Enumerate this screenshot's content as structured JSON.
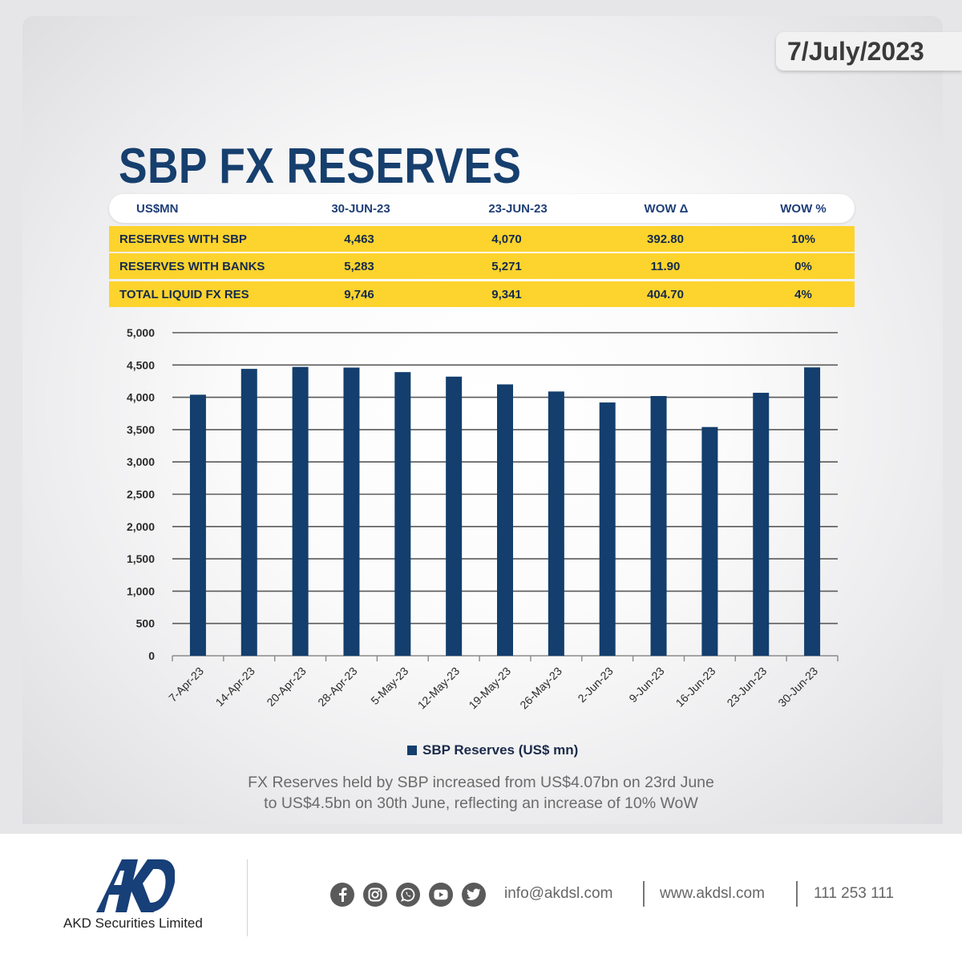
{
  "date": "7/July/2023",
  "title": "SBP FX RESERVES",
  "table": {
    "headers": [
      "US$MN",
      "30-JUN-23",
      "23-JUN-23",
      "WOW Δ",
      "WOW %"
    ],
    "rows": [
      [
        "RESERVES WITH SBP",
        "4,463",
        "4,070",
        "392.80",
        "10%"
      ],
      [
        "RESERVES WITH BANKS",
        "5,283",
        "5,271",
        "11.90",
        "0%"
      ],
      [
        "TOTAL LIQUID FX RES",
        "9,746",
        "9,341",
        "404.70",
        "4%"
      ]
    ]
  },
  "chart_data": {
    "type": "bar",
    "categories": [
      "7-Apr-23",
      "14-Apr-23",
      "20-Apr-23",
      "28-Apr-23",
      "5-May-23",
      "12-May-23",
      "19-May-23",
      "26-May-23",
      "2-Jun-23",
      "9-Jun-23",
      "16-Jun-23",
      "23-Jun-23",
      "30-Jun-23"
    ],
    "series": [
      {
        "name": "SBP Reserves (US$ mn)",
        "values": [
          4040,
          4440,
          4470,
          4460,
          4390,
          4320,
          4200,
          4090,
          3920,
          4020,
          3540,
          4070,
          4463
        ]
      }
    ],
    "ylim": [
      0,
      5000
    ],
    "yticks": [
      0,
      500,
      1000,
      1500,
      2000,
      2500,
      3000,
      3500,
      4000,
      4500,
      5000
    ],
    "ytick_labels": [
      "0",
      "500",
      "1,000",
      "1,500",
      "2,000",
      "2,500",
      "3,000",
      "3,500",
      "4,000",
      "4,500",
      "5,000"
    ],
    "grid": true,
    "legend_position": "bottom",
    "bar_color": "#133e6d"
  },
  "caption": {
    "line1": "FX Reserves held by SBP increased from US$4.07bn on 23rd June",
    "line2": "to US$4.5bn on 30th June, reflecting an increase of 10% WoW"
  },
  "footer": {
    "company": "AKD Securities Limited",
    "social_icons": [
      "facebook-icon",
      "instagram-icon",
      "whatsapp-icon",
      "youtube-icon",
      "twitter-icon"
    ],
    "email": "info@akdsl.com",
    "website": "www.akdsl.com",
    "phone": "111 253 111"
  }
}
